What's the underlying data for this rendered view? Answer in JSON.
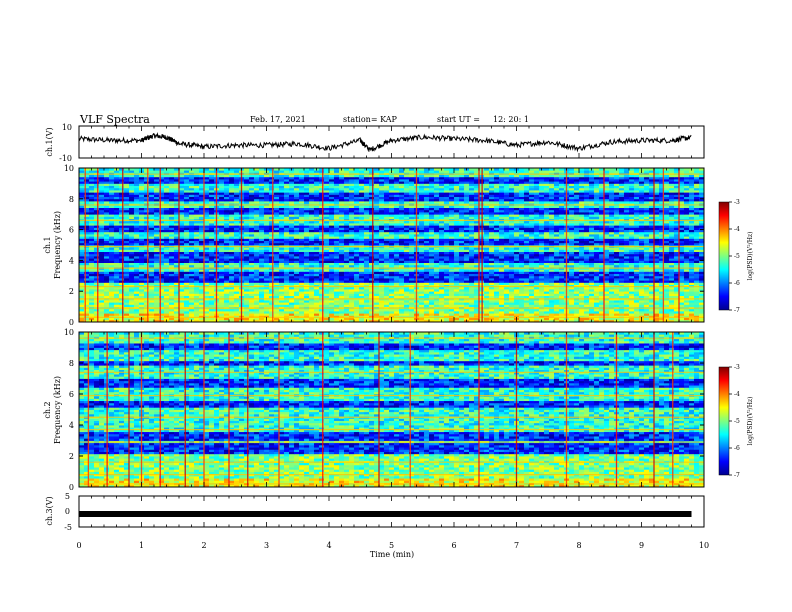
{
  "header": {
    "title": "VLF Spectra",
    "date": "Feb. 17, 2021",
    "station": "station= KAP",
    "start_label": "start  UT  =",
    "start_time": "12: 20: 1"
  },
  "chart_data": [
    {
      "id": "ch1_waveform",
      "type": "line",
      "ylabel": "ch.1(V)",
      "ylim": [
        -10,
        10
      ],
      "y_ticks": [
        "10",
        "-10"
      ],
      "xlim": [
        0,
        10
      ],
      "trace_color": "#000000",
      "x": [
        0,
        0.5,
        1.0,
        1.2,
        1.4,
        1.6,
        2.0,
        2.5,
        3.0,
        3.5,
        4.0,
        4.5,
        4.65,
        5.0,
        5.5,
        6.0,
        6.5,
        7.0,
        7.5,
        8.0,
        8.5,
        9.0,
        9.5,
        9.8
      ],
      "values": [
        2,
        1,
        1,
        4,
        3,
        -1,
        -3,
        -2,
        -2,
        -1,
        -4,
        1,
        -5,
        1,
        3,
        2,
        1,
        -2,
        0,
        -4,
        0,
        1,
        1,
        3
      ]
    },
    {
      "id": "ch1_spectrogram",
      "type": "heatmap",
      "ylabel_channel": "ch.1",
      "ylabel": "Frequency  (kHz)",
      "ylim": [
        0,
        10
      ],
      "y_ticks": [
        "0",
        "2",
        "4",
        "6",
        "8",
        "10"
      ],
      "xlim": [
        0,
        10
      ],
      "colorbar_label": "log(PSD)(V²/Hz)",
      "colorbar_range": [
        -7,
        -3
      ],
      "colorbar_ticks": [
        "-3",
        "-4",
        "-5",
        "-6",
        "-7"
      ],
      "dark_bands_khz": [
        [
          2.6,
          3.3
        ],
        [
          3.8,
          4.6
        ],
        [
          5.0,
          5.4
        ],
        [
          5.8,
          6.3
        ],
        [
          7.0,
          7.4
        ],
        [
          7.9,
          8.4
        ],
        [
          9.0,
          9.4
        ]
      ],
      "bright_lines_khz": [
        0.3,
        0.9,
        1.5,
        2.3,
        3.5,
        4.9,
        6.6,
        7.6,
        9.6
      ],
      "vertical_bursts_min": [
        0.1,
        0.3,
        0.7,
        1.1,
        1.3,
        1.6,
        2.0,
        2.2,
        2.6,
        3.1,
        3.9,
        4.7,
        5.4,
        6.4,
        6.45,
        7.8,
        8.4,
        9.2,
        9.35,
        9.6
      ]
    },
    {
      "id": "ch2_spectrogram",
      "type": "heatmap",
      "ylabel_channel": "ch.2",
      "ylabel": "Frequency  (kHz)",
      "ylim": [
        0,
        10
      ],
      "y_ticks": [
        "0",
        "2",
        "4",
        "6",
        "8",
        "10"
      ],
      "xlim": [
        0,
        10
      ],
      "colorbar_label": "log(PSD)(V²/Hz)",
      "colorbar_range": [
        -7,
        -3
      ],
      "colorbar_ticks": [
        "-3",
        "-4",
        "-5",
        "-6",
        "-7"
      ],
      "dark_bands_khz": [
        [
          2.2,
          2.8
        ],
        [
          3.0,
          3.6
        ],
        [
          5.2,
          5.6
        ],
        [
          6.5,
          7.0
        ],
        [
          7.8,
          8.2
        ],
        [
          8.8,
          9.3
        ]
      ],
      "bright_lines_khz": [
        0.2,
        0.8,
        1.6,
        2.9,
        3.7,
        4.5,
        5.9,
        7.4,
        9.6
      ],
      "vertical_bursts_min": [
        0.15,
        0.45,
        0.8,
        1.0,
        1.3,
        1.7,
        2.0,
        2.4,
        2.7,
        3.2,
        3.9,
        4.8,
        5.3,
        6.4,
        7.0,
        7.8,
        8.6,
        9.2,
        9.5
      ]
    },
    {
      "id": "ch3_waveform",
      "type": "line",
      "ylabel": "ch.3(V)",
      "ylim": [
        -5,
        5
      ],
      "y_ticks": [
        "5",
        "0",
        "-5"
      ],
      "xlim": [
        0,
        10
      ],
      "trace_color": "#000000",
      "x": [
        0,
        9.8
      ],
      "values": [
        -0.8,
        -0.8
      ]
    }
  ],
  "x_axis": {
    "label": "Time  (min)",
    "ticks": [
      "0",
      "1",
      "2",
      "3",
      "4",
      "5",
      "6",
      "7",
      "8",
      "9",
      "10"
    ]
  },
  "colors": {
    "colormap": [
      "#00008f",
      "#0000ff",
      "#0080ff",
      "#00ffff",
      "#80ff80",
      "#ffff00",
      "#ff8000",
      "#ff0000",
      "#800000"
    ]
  }
}
